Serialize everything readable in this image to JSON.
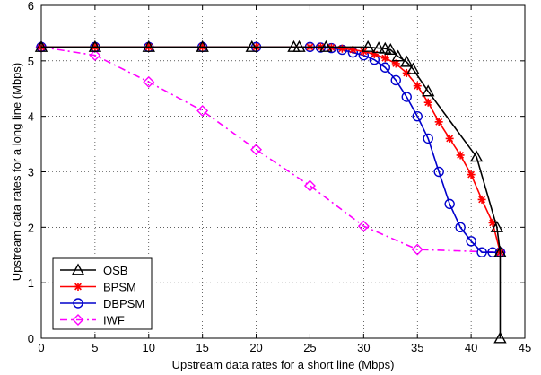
{
  "chart_data": {
    "type": "line",
    "title": "",
    "xlabel": "Upstream data rates for a short line (Mbps)",
    "ylabel": "Upstream data rates for a long line (Mbps)",
    "xlim": [
      0,
      45
    ],
    "ylim": [
      0,
      6
    ],
    "xticks": [
      "0",
      "5",
      "10",
      "15",
      "20",
      "25",
      "30",
      "35",
      "40",
      "45"
    ],
    "yticks": [
      "0",
      "1",
      "2",
      "3",
      "4",
      "5",
      "6"
    ],
    "grid": true,
    "legend_position": "bottom-left",
    "series": [
      {
        "name": "OSB",
        "color": "#000000",
        "marker": "triangle",
        "dash": "solid",
        "x": [
          0,
          5,
          10,
          15,
          19.6,
          23.5,
          24,
          26.5,
          30.4,
          31.4,
          32,
          32.5,
          33.2,
          34,
          34.6,
          36,
          40.5,
          42.4,
          42.7,
          42.7
        ],
        "y": [
          5.25,
          5.25,
          5.25,
          5.25,
          5.25,
          5.25,
          5.25,
          5.25,
          5.25,
          5.23,
          5.22,
          5.2,
          5.08,
          4.98,
          4.85,
          4.45,
          3.27,
          2.0,
          1.55,
          0.0
        ]
      },
      {
        "name": "BPSM",
        "color": "#ff0000",
        "marker": "star",
        "dash": "solid",
        "x": [
          0,
          5,
          10,
          15,
          20,
          25,
          26,
          27,
          28,
          29,
          30,
          31,
          32,
          33,
          34,
          35,
          36,
          37,
          38,
          39,
          40,
          41,
          42,
          42.7
        ],
        "y": [
          5.25,
          5.25,
          5.25,
          5.25,
          5.25,
          5.25,
          5.25,
          5.24,
          5.22,
          5.2,
          5.17,
          5.12,
          5.05,
          4.95,
          4.78,
          4.55,
          4.25,
          3.9,
          3.6,
          3.3,
          2.95,
          2.5,
          2.08,
          1.55
        ]
      },
      {
        "name": "DBPSM",
        "color": "#0000cc",
        "marker": "circle",
        "dash": "solid",
        "x": [
          0,
          5,
          10,
          15,
          20,
          25,
          26,
          27,
          28,
          29,
          30,
          31,
          32,
          33,
          34,
          35,
          36,
          37,
          38,
          39,
          40,
          41,
          42,
          42.7
        ],
        "y": [
          5.25,
          5.25,
          5.25,
          5.25,
          5.25,
          5.25,
          5.24,
          5.23,
          5.2,
          5.15,
          5.1,
          5.02,
          4.88,
          4.65,
          4.35,
          4.0,
          3.6,
          3.0,
          2.42,
          2.0,
          1.75,
          1.55,
          1.55,
          1.55
        ]
      },
      {
        "name": "IWF",
        "color": "#ff00ff",
        "marker": "diamond",
        "dash": "dashdot",
        "x": [
          0,
          5,
          10,
          15,
          20,
          25,
          30,
          35,
          42.7
        ],
        "y": [
          5.25,
          5.1,
          4.62,
          4.1,
          3.4,
          2.75,
          2.02,
          1.6,
          1.55
        ]
      }
    ]
  }
}
